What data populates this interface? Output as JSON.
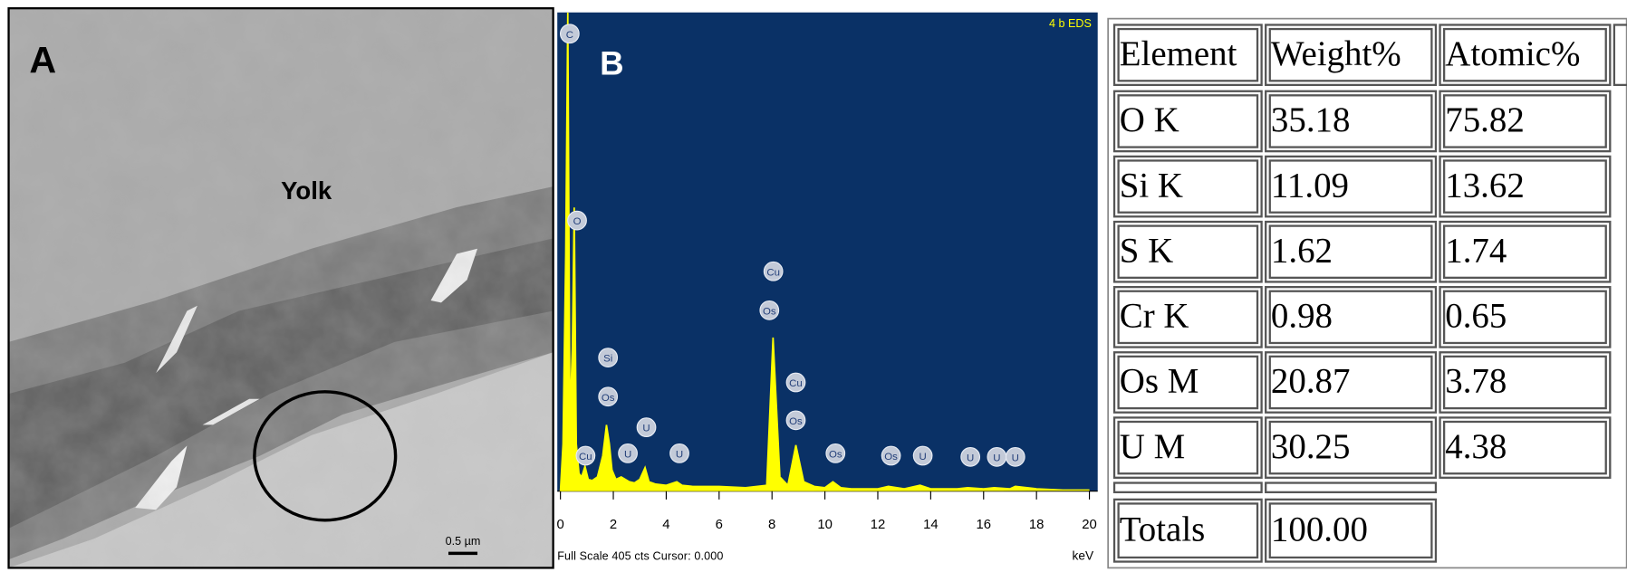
{
  "panel_a": {
    "label": "A",
    "annotation": "Yolk",
    "scale_bar": "0.5 µm"
  },
  "chart_data": {
    "type": "line",
    "panel_label": "B",
    "title": "4 b EDS",
    "xlabel": "keV",
    "footer": "Full Scale 405 cts Cursor: 0.000",
    "color": "#ffff00",
    "background": "#0a3166",
    "xlim": [
      0,
      20
    ],
    "xticks": [
      0,
      2,
      4,
      6,
      8,
      10,
      12,
      14,
      16,
      18,
      20
    ],
    "ylim": [
      0,
      405
    ],
    "x": [
      0,
      0.1,
      0.2,
      0.28,
      0.36,
      0.45,
      0.52,
      0.6,
      0.7,
      0.8,
      0.93,
      1.05,
      1.2,
      1.4,
      1.6,
      1.74,
      1.85,
      1.95,
      2.1,
      2.3,
      2.45,
      2.6,
      2.8,
      3.0,
      3.2,
      3.35,
      3.6,
      4.0,
      4.4,
      4.6,
      5,
      6,
      7,
      7.8,
      8.04,
      8.3,
      8.6,
      8.9,
      9.2,
      9.6,
      10,
      10.3,
      10.6,
      11,
      12,
      12.4,
      13,
      13.6,
      14,
      15,
      15.4,
      16,
      16.4,
      17,
      17.2,
      18,
      19,
      20
    ],
    "values": [
      0,
      40,
      200,
      405,
      60,
      120,
      240,
      40,
      15,
      12,
      21,
      10,
      9,
      12,
      30,
      56,
      40,
      18,
      10,
      12,
      10,
      8,
      7,
      10,
      20,
      8,
      6,
      5,
      8,
      5,
      4,
      4,
      3,
      5,
      130,
      12,
      5,
      39,
      8,
      4,
      3,
      8,
      3,
      2,
      2,
      4,
      2,
      5,
      2,
      2,
      3,
      2,
      3,
      2,
      4,
      2,
      1,
      1
    ],
    "peaks": [
      {
        "label": "C",
        "x": 0.35,
        "y": 387
      },
      {
        "label": "O",
        "x": 0.63,
        "y": 229
      },
      {
        "label": "Cu",
        "x": 0.95,
        "y": 30
      },
      {
        "label": "Si",
        "x": 1.8,
        "y": 113
      },
      {
        "label": "Os",
        "x": 1.8,
        "y": 80
      },
      {
        "label": "U",
        "x": 2.55,
        "y": 32
      },
      {
        "label": "U",
        "x": 3.25,
        "y": 54
      },
      {
        "label": "U",
        "x": 4.5,
        "y": 32
      },
      {
        "label": "Os",
        "x": 7.9,
        "y": 153
      },
      {
        "label": "Cu",
        "x": 8.05,
        "y": 186
      },
      {
        "label": "Cu",
        "x": 8.9,
        "y": 92
      },
      {
        "label": "Os",
        "x": 8.9,
        "y": 60
      },
      {
        "label": "Os",
        "x": 10.4,
        "y": 32
      },
      {
        "label": "Os",
        "x": 12.5,
        "y": 30
      },
      {
        "label": "U",
        "x": 13.7,
        "y": 30
      },
      {
        "label": "U",
        "x": 15.5,
        "y": 29
      },
      {
        "label": "U",
        "x": 16.5,
        "y": 29
      },
      {
        "label": "U",
        "x": 17.2,
        "y": 29
      }
    ]
  },
  "table": {
    "header": [
      "Element",
      "Weight%",
      "Atomic%"
    ],
    "rows": [
      [
        "O K",
        "35.18",
        "75.82"
      ],
      [
        "Si K",
        "11.09",
        "13.62"
      ],
      [
        "S K",
        "1.62",
        "1.74"
      ],
      [
        "Cr K",
        "0.98",
        "0.65"
      ],
      [
        "Os M",
        "20.87",
        "3.78"
      ],
      [
        "U M",
        "30.25",
        "4.38"
      ]
    ],
    "totals": [
      "Totals",
      "100.00"
    ]
  }
}
